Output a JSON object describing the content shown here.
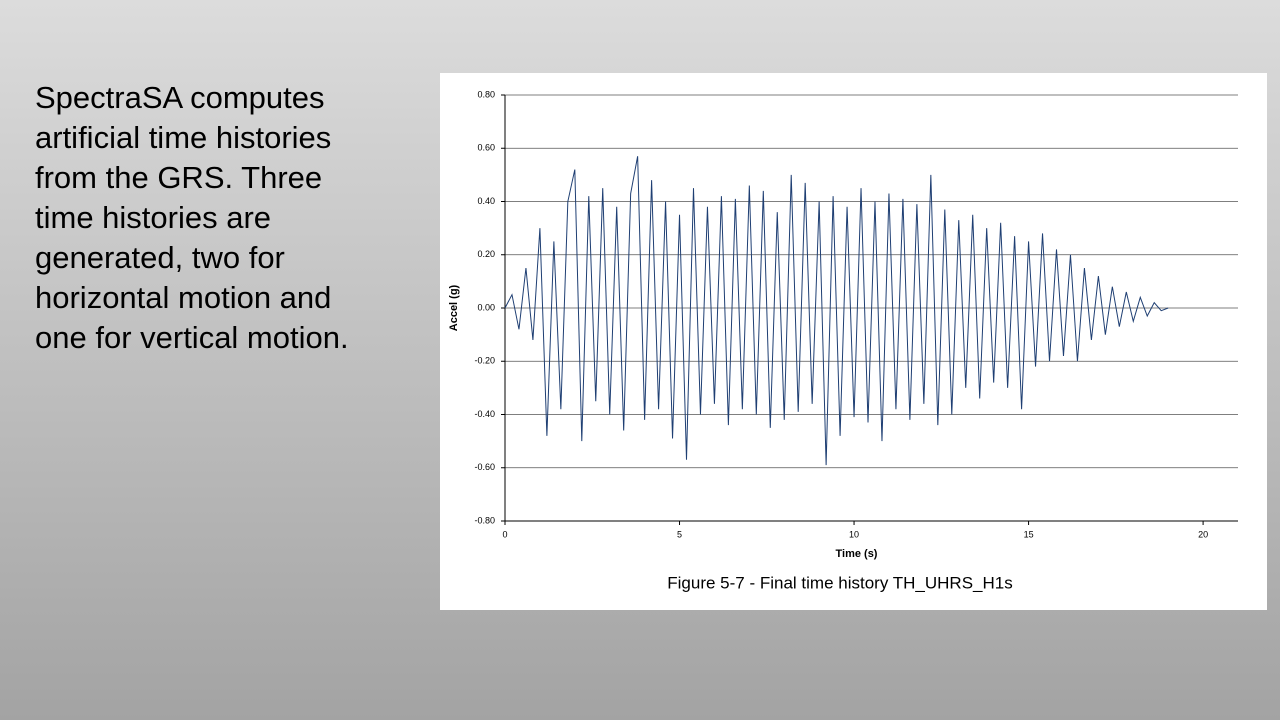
{
  "slide": {
    "body_lines": [
      "SpectraSA computes",
      "artificial time histories",
      "from the GRS. Three",
      "time histories are",
      "generated, two for",
      "horizontal motion and",
      "one for vertical motion."
    ]
  },
  "chart_data": {
    "type": "line",
    "caption": "Figure 5-7 - Final time history TH_UHRS_H1s",
    "x_label": "Time (s)",
    "y_label": "Accel (g)",
    "xlim": [
      0,
      21
    ],
    "ylim": [
      -0.8,
      0.8
    ],
    "xticks": [
      0,
      5,
      10,
      15,
      20
    ],
    "yticks": [
      {
        "value": 0.8,
        "label": "0.80"
      },
      {
        "value": 0.6,
        "label": "0.60"
      },
      {
        "value": 0.4,
        "label": "0.40"
      },
      {
        "value": 0.2,
        "label": "0.20"
      },
      {
        "value": 0,
        "label": "0.00"
      },
      {
        "value": -0.2,
        "label": "-0.20"
      },
      {
        "value": -0.4,
        "label": "-0.40"
      },
      {
        "value": -0.6,
        "label": "-0.60"
      },
      {
        "value": -0.8,
        "label": "-0.80"
      }
    ],
    "grid": true,
    "series": [
      {
        "color": "#1f3f73",
        "x": [
          0,
          0.2,
          0.4,
          0.6,
          0.8,
          1,
          1.2,
          1.4,
          1.6,
          1.8,
          2,
          2.2,
          2.4,
          2.6,
          2.8,
          3,
          3.2,
          3.4,
          3.6,
          3.8,
          4,
          4.2,
          4.4,
          4.6,
          4.8,
          5,
          5.2,
          5.4,
          5.6,
          5.8,
          6,
          6.2,
          6.4,
          6.6,
          6.8,
          7,
          7.2,
          7.4,
          7.6,
          7.8,
          8,
          8.2,
          8.4,
          8.6,
          8.8,
          9,
          9.2,
          9.4,
          9.6,
          9.8,
          10,
          10.2,
          10.4,
          10.6,
          10.8,
          11,
          11.2,
          11.4,
          11.6,
          11.8,
          12,
          12.2,
          12.4,
          12.6,
          12.8,
          13,
          13.2,
          13.4,
          13.6,
          13.8,
          14,
          14.2,
          14.4,
          14.6,
          14.8,
          15,
          15.2,
          15.4,
          15.6,
          15.8,
          16,
          16.2,
          16.4,
          16.6,
          16.8,
          17,
          17.2,
          17.4,
          17.6,
          17.8,
          18,
          18.2,
          18.4,
          18.6,
          18.8,
          19
        ],
        "values": [
          0,
          0.05,
          -0.08,
          0.15,
          -0.12,
          0.3,
          -0.48,
          0.25,
          -0.38,
          0.4,
          0.52,
          -0.5,
          0.42,
          -0.35,
          0.45,
          -0.4,
          0.38,
          -0.46,
          0.43,
          0.57,
          -0.42,
          0.48,
          -0.38,
          0.4,
          -0.49,
          0.35,
          -0.57,
          0.45,
          -0.4,
          0.38,
          -0.36,
          0.42,
          -0.44,
          0.41,
          -0.38,
          0.46,
          -0.4,
          0.44,
          -0.45,
          0.36,
          -0.42,
          0.5,
          -0.39,
          0.47,
          -0.36,
          0.4,
          -0.59,
          0.42,
          -0.48,
          0.38,
          -0.41,
          0.45,
          -0.43,
          0.4,
          -0.5,
          0.43,
          -0.38,
          0.41,
          -0.42,
          0.39,
          -0.36,
          0.5,
          -0.44,
          0.37,
          -0.4,
          0.33,
          -0.3,
          0.35,
          -0.34,
          0.3,
          -0.28,
          0.32,
          -0.3,
          0.27,
          -0.38,
          0.25,
          -0.22,
          0.28,
          -0.2,
          0.22,
          -0.18,
          0.2,
          -0.2,
          0.15,
          -0.12,
          0.12,
          -0.1,
          0.08,
          -0.07,
          0.06,
          -0.05,
          0.04,
          -0.03,
          0.02,
          -0.01,
          0
        ]
      }
    ]
  }
}
